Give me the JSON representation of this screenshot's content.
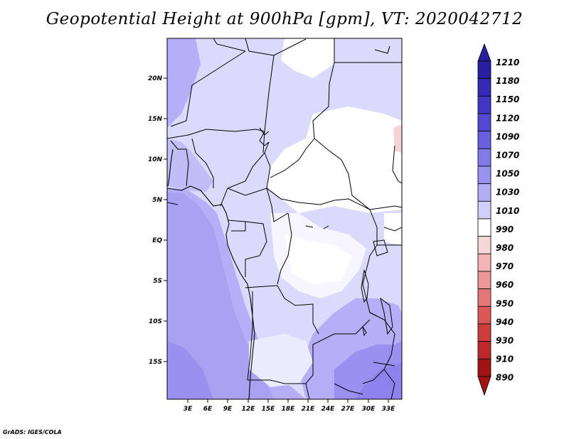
{
  "title": "Geopotential Height at 900hPa [gpm], VT: 2020042712",
  "credit": "GrADS: IGES/COLA",
  "map": {
    "lon_ticks": [
      "3E",
      "6E",
      "9E",
      "12E",
      "15E",
      "18E",
      "21E",
      "24E",
      "27E",
      "30E",
      "33E"
    ],
    "lat_ticks": [
      "20N",
      "15N",
      "10N",
      "5N",
      "EQ",
      "5S",
      "10S",
      "15S"
    ],
    "fills": {
      "deep": "#8e82ee",
      "mid": "#a79df2",
      "light": "#c2bcf7",
      "pale": "#dcdafc",
      "white": "#ffffff",
      "pink": "#f6d4d4"
    }
  },
  "colorbar": {
    "labels": [
      "1210",
      "1180",
      "1150",
      "1120",
      "1090",
      "1070",
      "1050",
      "1030",
      "1010",
      "990",
      "980",
      "970",
      "960",
      "950",
      "940",
      "930",
      "910",
      "890"
    ],
    "colors": [
      "#2a1ea0",
      "#352ab5",
      "#4236c4",
      "#5449d4",
      "#6b60e0",
      "#8279ea",
      "#9a92f0",
      "#b4aef5",
      "#d2cefa",
      "#ffffff",
      "#f6d6d6",
      "#f2b6b6",
      "#ec9898",
      "#e47878",
      "#dc5858",
      "#d03c3c",
      "#be2828",
      "#a01414"
    ]
  }
}
